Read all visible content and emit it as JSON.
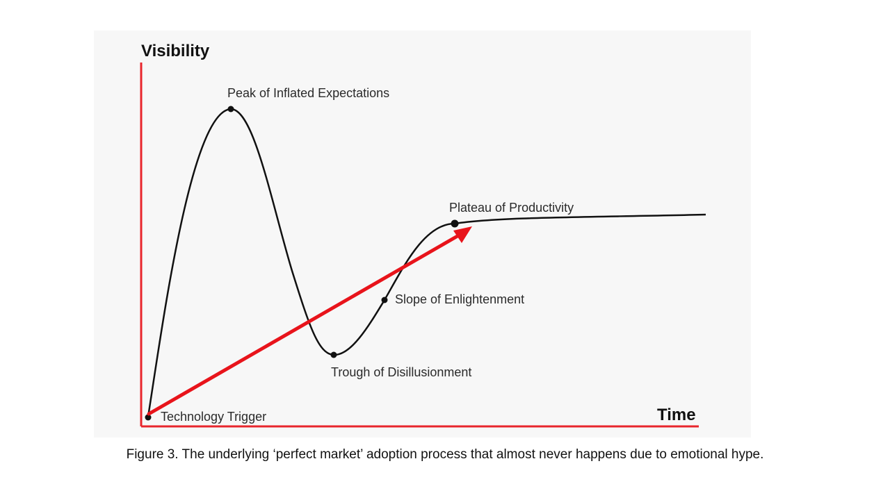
{
  "axes": {
    "y_label": "Visibility",
    "x_label": "Time",
    "color": "#e8262c"
  },
  "curve": {
    "color": "#111111",
    "points": [
      {
        "label": "Technology Trigger"
      },
      {
        "label": "Peak of Inflated Expectations"
      },
      {
        "label": "Trough of Disillusionment"
      },
      {
        "label": "Slope of Enlightenment"
      },
      {
        "label": "Plateau of Productivity"
      }
    ]
  },
  "arrow": {
    "color": "#e8141b",
    "from": "Technology Trigger",
    "to": "Plateau of Productivity"
  },
  "caption": "Figure 3. The underlying ‘perfect market’ adoption process that almost never happens due to emotional hype."
}
